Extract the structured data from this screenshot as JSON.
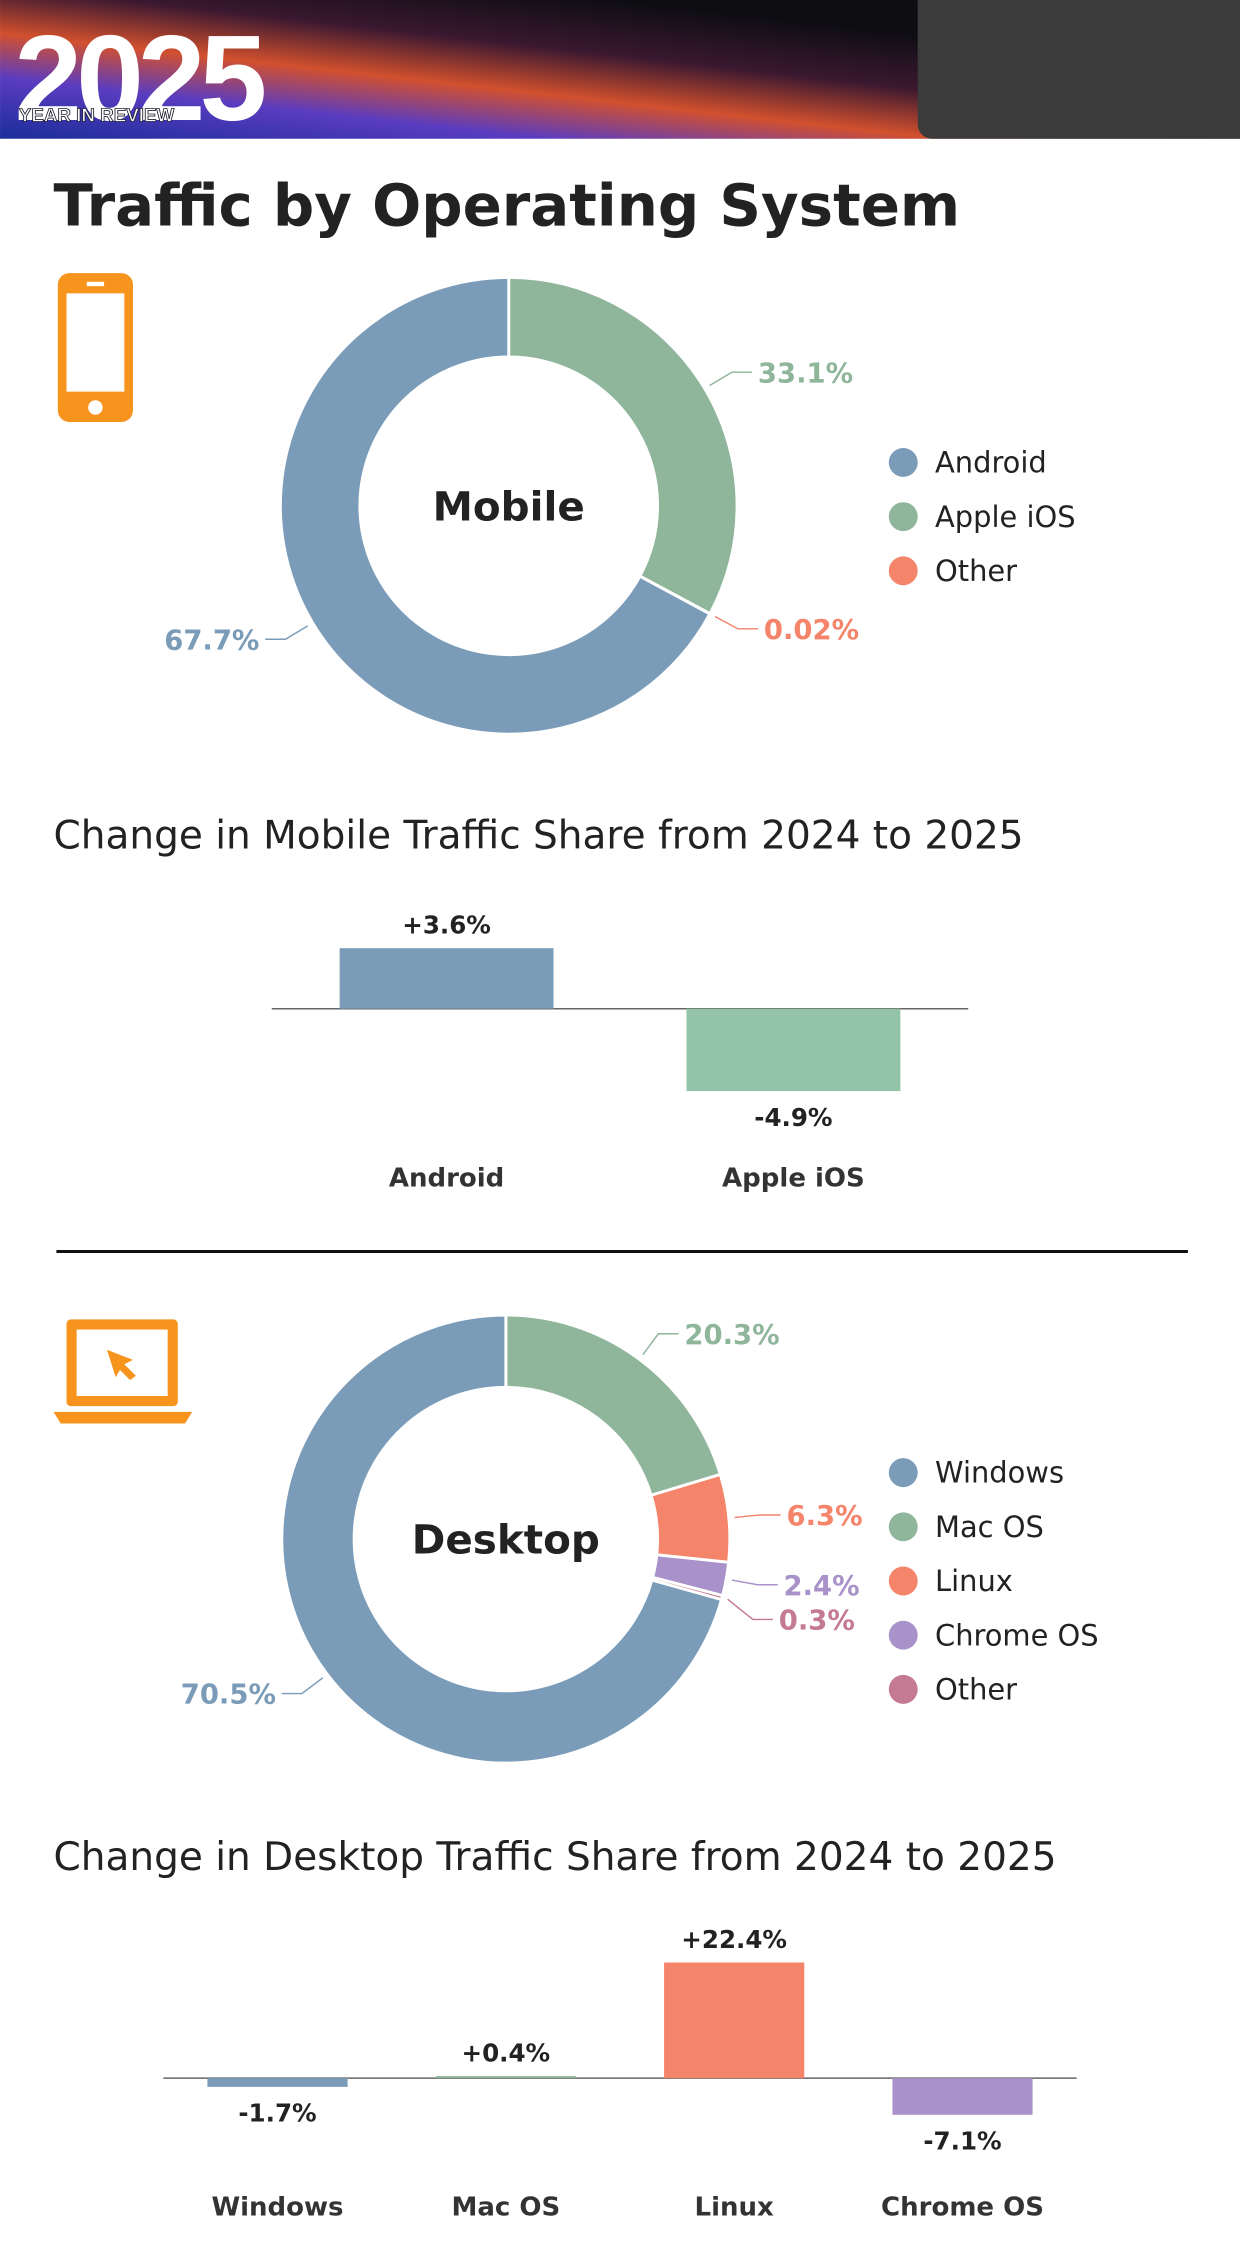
{
  "header": {
    "year": "2025",
    "subtitle": "YEAR IN REVIEW"
  },
  "title": "Traffic by Operating System",
  "chart_data": [
    {
      "type": "pie",
      "center_label": "Mobile",
      "categories": [
        "Android",
        "Apple iOS",
        "Other"
      ],
      "values": [
        67.7,
        33.1,
        0.02
      ],
      "value_labels": [
        "67.7%",
        "33.1%",
        "0.02%"
      ],
      "colors": [
        "#7b9cb8",
        "#8fb59b",
        "#f4846a"
      ]
    },
    {
      "type": "bar",
      "title": "Change in Mobile Traffic Share from 2024 to 2025",
      "categories": [
        "Android",
        "Apple iOS"
      ],
      "values": [
        3.6,
        -4.9
      ],
      "value_labels": [
        "+3.6%",
        "-4.9%"
      ],
      "colors": [
        "#7b9cb8",
        "#93c4a8"
      ]
    },
    {
      "type": "pie",
      "center_label": "Desktop",
      "categories": [
        "Windows",
        "Mac OS",
        "Linux",
        "Chrome OS",
        "Other"
      ],
      "values": [
        70.5,
        20.3,
        6.3,
        2.4,
        0.3
      ],
      "value_labels": [
        "70.5%",
        "20.3%",
        "6.3%",
        "2.4%",
        "0.3%"
      ],
      "colors": [
        "#7b9cb8",
        "#8fb59b",
        "#f4846a",
        "#a992c9",
        "#c47a93"
      ]
    },
    {
      "type": "bar",
      "title": "Change in Desktop Traffic Share from 2024 to 2025",
      "categories": [
        "Windows",
        "Mac OS",
        "Linux",
        "Chrome OS"
      ],
      "values": [
        -1.7,
        0.4,
        22.4,
        -7.1
      ],
      "value_labels": [
        "-1.7%",
        "+0.4%",
        "+22.4%",
        "-7.1%"
      ],
      "colors": [
        "#7b9cb8",
        "#8fb59b",
        "#f4846a",
        "#a992c9"
      ]
    }
  ]
}
